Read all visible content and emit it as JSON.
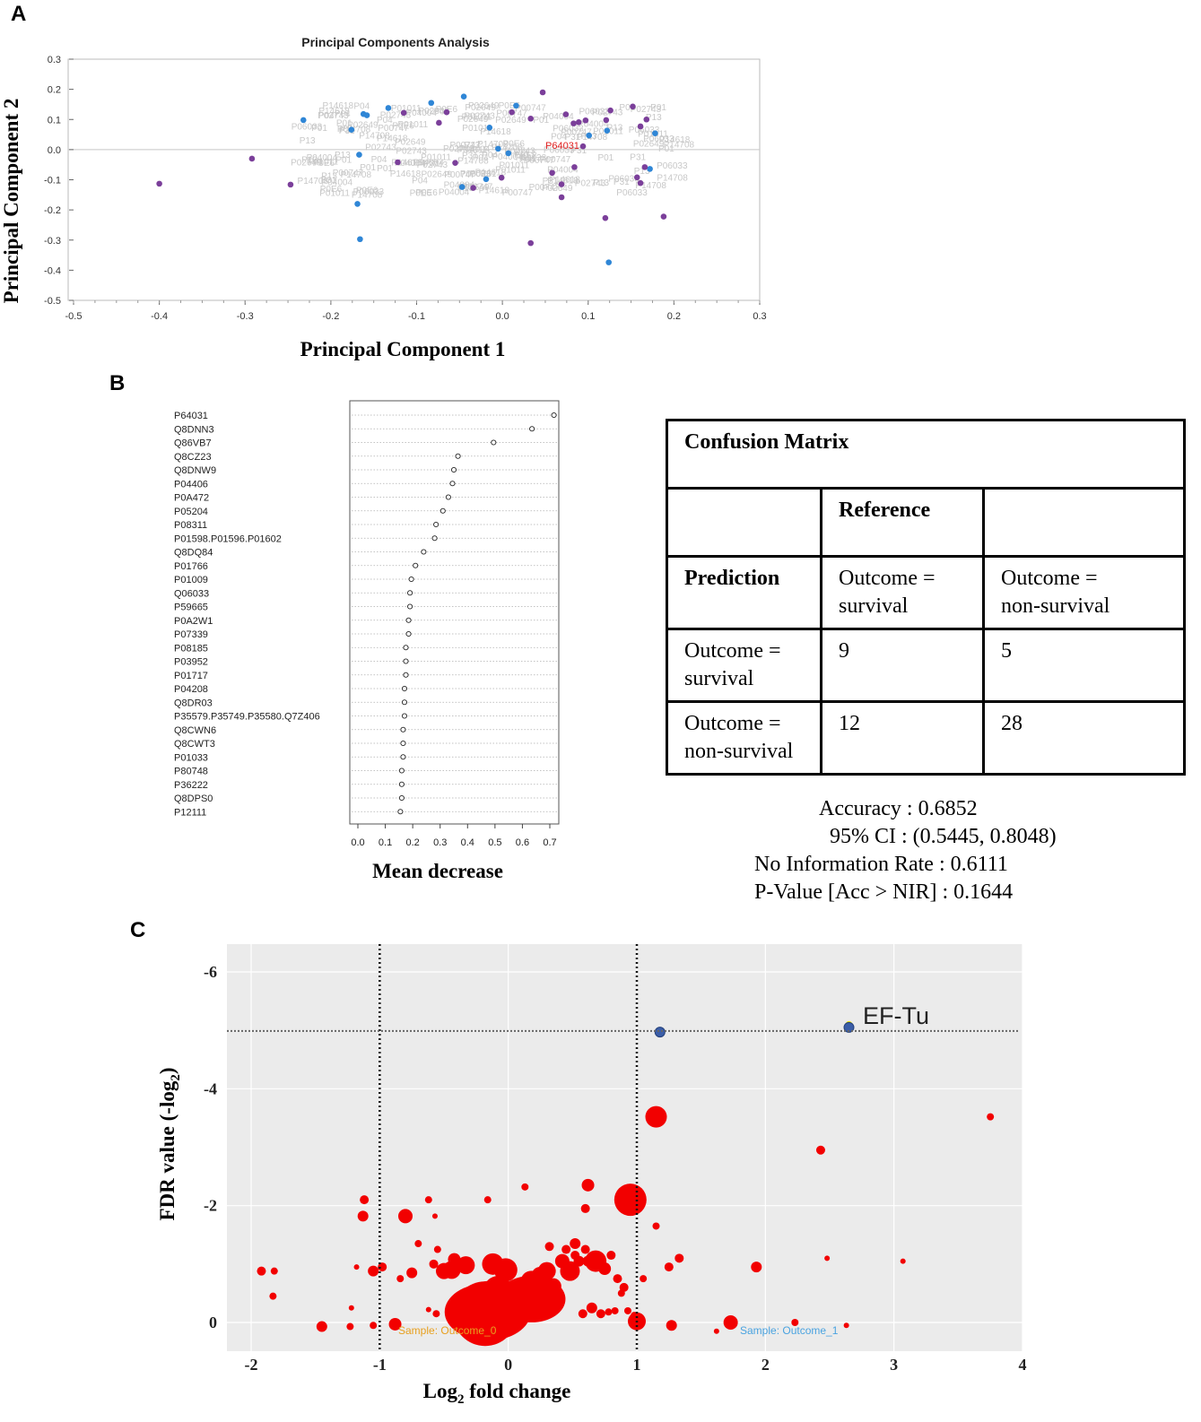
{
  "panels": {
    "a": "A",
    "b": "B",
    "c": "C"
  },
  "pca": {
    "title": "Principal Components Analysis",
    "xlabel": "Principal Component 1",
    "ylabel": "Principal Component 2",
    "highlight_label": "P64031",
    "bg_labels": [
      "P14708",
      "P00747",
      "P04004",
      "P04",
      "P06033",
      "P01011",
      "P02649",
      "P31",
      "P14618",
      "P02743",
      "P0E6",
      "P01",
      "P13"
    ],
    "colors": {
      "group1": "#2f86d6",
      "group2": "#7b3f9a",
      "highlight": "#e01e1e",
      "bg_text": "#c8c8c8"
    }
  },
  "importance": {
    "xlabel": "Mean decrease",
    "ticks": [
      "0.0",
      "0.1",
      "0.2",
      "0.3",
      "0.4",
      "0.5",
      "0.6",
      "0.7"
    ]
  },
  "confusion": {
    "title": "Confusion Matrix",
    "reference": "Reference",
    "prediction": "Prediction",
    "col1_line1": "Outcome =",
    "col1_line2": "survival",
    "col2_line1": "Outcome =",
    "col2_line2": "non-survival",
    "row1_line1": "Outcome =",
    "row1_line2": "survival",
    "row2_line1": "Outcome =",
    "row2_line2": "non-survival",
    "cells": [
      "9",
      "5",
      "12",
      "28"
    ]
  },
  "stats": {
    "accuracy": "Accuracy : 0.6852",
    "ci": "95% CI : (0.5445, 0.8048)",
    "nir": "No Information Rate : 0.6111",
    "pvalue": "P-Value [Acc > NIR] : 0.1644"
  },
  "volcano": {
    "xlabel_pre": "Log",
    "xlabel_sub": "2",
    "xlabel_post": " fold change",
    "ylabel_pre": "FDR value (-log",
    "ylabel_sub": "2",
    "ylabel_post": ")",
    "annotation": "EF-Tu",
    "sample0": "Sample: Outcome_0",
    "sample1": "Sample: Outcome_1",
    "colors": {
      "point": "#f20000",
      "highlight": "#3b5ea8",
      "sample0": "#e8a020",
      "sample1": "#4aa3e0",
      "bg": "#ebebeb"
    }
  },
  "chart_data": [
    {
      "type": "scatter",
      "title": "Principal Components Analysis",
      "xlabel": "Principal Component 1",
      "ylabel": "Principal Component 2",
      "xlim": [
        -0.5,
        0.3
      ],
      "ylim": [
        -0.5,
        0.3
      ],
      "xticks": [
        -0.5,
        -0.4,
        -0.3,
        -0.2,
        -0.1,
        0.0,
        0.1,
        0.2,
        0.3
      ],
      "yticks": [
        0.3,
        0.2,
        0.1,
        0.0,
        -0.1,
        -0.2,
        -0.3,
        -0.4,
        -0.5
      ],
      "xtick_labels": [
        "-0.5",
        "-0.4",
        "-0.3",
        "-0.2",
        "-0.1",
        "0.0",
        "0.1",
        "0.2",
        "0.3"
      ],
      "ytick_labels": [
        "0.3",
        "0.2",
        "0.1",
        "0.0",
        "-0.1",
        "-0.2",
        "-0.3",
        "-0.4",
        "-0.5"
      ],
      "series": [
        {
          "name": "group1",
          "points": [
            [
              -0.232,
              0.098
            ],
            [
              -0.176,
              0.066
            ],
            [
              -0.167,
              -0.017
            ],
            [
              -0.162,
              0.118
            ],
            [
              -0.158,
              0.114
            ],
            [
              -0.133,
              0.138
            ],
            [
              -0.083,
              0.155
            ],
            [
              -0.045,
              0.176
            ],
            [
              -0.015,
              0.073
            ],
            [
              0.016,
              0.146
            ],
            [
              -0.047,
              -0.124
            ],
            [
              -0.019,
              -0.098
            ],
            [
              -0.005,
              0.003
            ],
            [
              0.007,
              -0.012
            ],
            [
              0.101,
              0.047
            ],
            [
              0.122,
              0.063
            ],
            [
              0.178,
              0.054
            ],
            [
              0.172,
              -0.064
            ],
            [
              -0.169,
              -0.18
            ],
            [
              -0.166,
              -0.297
            ],
            [
              0.124,
              -0.374
            ]
          ]
        },
        {
          "name": "group2",
          "points": [
            [
              -0.4,
              -0.113
            ],
            [
              -0.292,
              -0.03
            ],
            [
              -0.247,
              -0.116
            ],
            [
              -0.115,
              0.122
            ],
            [
              -0.122,
              -0.042
            ],
            [
              -0.074,
              0.089
            ],
            [
              -0.065,
              0.124
            ],
            [
              -0.055,
              -0.044
            ],
            [
              -0.034,
              -0.127
            ],
            [
              0.047,
              0.19
            ],
            [
              0.011,
              0.124
            ],
            [
              0.033,
              0.103
            ],
            [
              0.074,
              0.117
            ],
            [
              0.083,
              0.087
            ],
            [
              0.089,
              0.091
            ],
            [
              0.097,
              0.097
            ],
            [
              0.121,
              0.098
            ],
            [
              0.126,
              0.13
            ],
            [
              0.152,
              0.143
            ],
            [
              0.168,
              0.1
            ],
            [
              0.161,
              0.077
            ],
            [
              0.084,
              -0.058
            ],
            [
              0.058,
              -0.077
            ],
            [
              0.069,
              -0.115
            ],
            [
              0.094,
              0.011
            ],
            [
              0.157,
              -0.092
            ],
            [
              0.161,
              -0.111
            ],
            [
              0.166,
              -0.058
            ],
            [
              0.069,
              -0.158
            ],
            [
              0.12,
              -0.227
            ],
            [
              0.188,
              -0.222
            ],
            [
              0.033,
              -0.31
            ],
            [
              -0.001,
              -0.093
            ]
          ]
        },
        {
          "name": "P64031",
          "points": [
            [
              0.052,
              0.012
            ]
          ]
        }
      ]
    },
    {
      "type": "dot",
      "xlabel": "Mean decrease",
      "xlim": [
        0.0,
        0.7
      ],
      "categories": [
        "P64031",
        "Q8DNN3",
        "Q86VB7",
        "Q8CZ23",
        "Q8DNW9",
        "P04406",
        "P0A472",
        "P05204",
        "P08311",
        "P01598.P01596.P01602",
        "Q8DQ84",
        "P01766",
        "P01009",
        "Q06033",
        "P59665",
        "P0A2W1",
        "P07339",
        "P08185",
        "P03952",
        "P01717",
        "P04208",
        "Q8DR03",
        "P35579.P35749.P35580.Q7Z406",
        "Q8CWN6",
        "Q8CWT3",
        "P01033",
        "P80748",
        "P36222",
        "Q8DPS0",
        "P12111"
      ],
      "values": [
        0.715,
        0.635,
        0.495,
        0.365,
        0.35,
        0.345,
        0.33,
        0.31,
        0.285,
        0.28,
        0.24,
        0.21,
        0.195,
        0.19,
        0.19,
        0.185,
        0.185,
        0.175,
        0.175,
        0.175,
        0.17,
        0.17,
        0.17,
        0.165,
        0.165,
        0.165,
        0.16,
        0.16,
        0.16,
        0.155
      ]
    },
    {
      "type": "table",
      "title": "Confusion Matrix",
      "columns": [
        "Outcome = survival",
        "Outcome = non-survival"
      ],
      "rows": [
        "Outcome = survival",
        "Outcome = non-survival"
      ],
      "values": [
        [
          9,
          5
        ],
        [
          12,
          28
        ]
      ],
      "accuracy": 0.6852,
      "ci95": [
        0.5445,
        0.8048
      ],
      "no_information_rate": 0.6111,
      "p_value": 0.1644
    },
    {
      "type": "scatter",
      "title": "",
      "xlabel": "Log2 fold change",
      "ylabel": "FDR value (-log2)",
      "xlim": [
        -2.2,
        4.0
      ],
      "ylim": [
        0.5,
        -6.5
      ],
      "xticks": [
        -2,
        -1,
        0,
        1,
        2,
        3,
        4
      ],
      "yticks": [
        -6,
        -4,
        -2,
        0
      ],
      "xtick_labels": [
        "-2",
        "-1",
        "0",
        "1",
        "2",
        "3",
        "4"
      ],
      "ytick_labels": [
        "-6",
        "-4",
        "-2",
        "0"
      ],
      "vlines": [
        -1,
        1
      ],
      "hline": -4.99,
      "annotation": {
        "text": "EF-Tu",
        "x": 2.65,
        "y": -5.05
      },
      "highlighted": [
        [
          1.18,
          -4.97
        ],
        [
          2.65,
          -5.05
        ]
      ],
      "points": [
        [
          -1.92,
          -0.88,
          5
        ],
        [
          -1.82,
          -0.88,
          4
        ],
        [
          -1.83,
          -0.45,
          4
        ],
        [
          -1.45,
          0.07,
          6
        ],
        [
          -1.23,
          0.07,
          4
        ],
        [
          -1.12,
          -2.1,
          5
        ],
        [
          -1.13,
          -1.82,
          6
        ],
        [
          -1.22,
          -0.25,
          3
        ],
        [
          -1.18,
          -0.95,
          3
        ],
        [
          -1.05,
          -0.88,
          6
        ],
        [
          -1.05,
          0.05,
          4
        ],
        [
          -0.88,
          0.03,
          7
        ],
        [
          -0.8,
          -1.82,
          8
        ],
        [
          -0.62,
          -2.1,
          4
        ],
        [
          -0.57,
          -1.82,
          3
        ],
        [
          -0.55,
          -1.25,
          4
        ],
        [
          -0.5,
          -0.88,
          9
        ],
        [
          -0.44,
          -0.9,
          10
        ],
        [
          -0.42,
          -1.08,
          7
        ],
        [
          -0.38,
          -0.35,
          9
        ],
        [
          -0.33,
          -0.98,
          10
        ],
        [
          -0.3,
          -0.12,
          13
        ],
        [
          -0.25,
          -0.25,
          16
        ],
        [
          -0.18,
          -0.15,
          36
        ],
        [
          -0.15,
          -0.28,
          28
        ],
        [
          -0.12,
          -1.0,
          12
        ],
        [
          -0.08,
          -0.55,
          16
        ],
        [
          -0.02,
          -0.9,
          13
        ],
        [
          0.02,
          -0.3,
          22
        ],
        [
          0.07,
          -0.4,
          15
        ],
        [
          0.12,
          -0.55,
          14
        ],
        [
          0.18,
          -0.7,
          12
        ],
        [
          0.25,
          -0.8,
          10
        ],
        [
          0.3,
          -0.88,
          10
        ],
        [
          0.35,
          -0.62,
          9
        ],
        [
          0.22,
          -0.2,
          8
        ],
        [
          0.42,
          -1.05,
          8
        ],
        [
          0.48,
          -0.88,
          11
        ],
        [
          0.52,
          -1.15,
          5
        ],
        [
          0.55,
          -1.05,
          6
        ],
        [
          0.62,
          -1.05,
          6
        ],
        [
          0.68,
          -1.05,
          12
        ],
        [
          0.75,
          -0.92,
          7
        ],
        [
          0.8,
          -1.15,
          5
        ],
        [
          0.85,
          -0.75,
          5
        ],
        [
          0.9,
          -0.6,
          5
        ],
        [
          0.58,
          -0.15,
          5
        ],
        [
          0.65,
          -0.25,
          6
        ],
        [
          0.72,
          -0.15,
          5
        ],
        [
          0.78,
          -0.18,
          4
        ],
        [
          0.83,
          -0.2,
          4
        ],
        [
          0.88,
          -0.5,
          4
        ],
        [
          0.93,
          -0.2,
          4
        ],
        [
          0.98,
          -0.12,
          4
        ],
        [
          0.6,
          -1.25,
          5
        ],
        [
          0.52,
          -1.35,
          6
        ],
        [
          0.45,
          -1.25,
          5
        ],
        [
          0.32,
          -1.3,
          5
        ],
        [
          0.62,
          -2.35,
          7
        ],
        [
          0.6,
          -1.95,
          5
        ],
        [
          0.13,
          -2.32,
          4
        ],
        [
          -0.16,
          -2.1,
          4
        ],
        [
          -0.7,
          -1.35,
          4
        ],
        [
          -0.75,
          -0.85,
          6
        ],
        [
          -0.98,
          -0.95,
          5
        ],
        [
          -0.84,
          -0.75,
          4
        ],
        [
          -0.62,
          -0.22,
          3
        ],
        [
          -0.58,
          -1.0,
          5
        ],
        [
          -0.56,
          -0.15,
          4
        ],
        [
          0.0,
          -0.5,
          4
        ],
        [
          0.95,
          -2.1,
          18
        ],
        [
          1.15,
          -3.52,
          12
        ],
        [
          1.15,
          -1.65,
          4
        ],
        [
          1.0,
          -0.02,
          10
        ],
        [
          1.05,
          -0.75,
          4
        ],
        [
          1.25,
          -0.95,
          5
        ],
        [
          1.33,
          -1.1,
          5
        ],
        [
          1.27,
          0.05,
          6
        ],
        [
          1.62,
          0.15,
          3
        ],
        [
          1.73,
          0.0,
          8
        ],
        [
          1.93,
          -0.95,
          6
        ],
        [
          2.23,
          0.0,
          4
        ],
        [
          2.43,
          -2.95,
          5
        ],
        [
          2.48,
          -1.1,
          3
        ],
        [
          2.63,
          0.05,
          3
        ],
        [
          3.07,
          -1.05,
          3
        ],
        [
          3.75,
          -3.52,
          4
        ]
      ]
    }
  ]
}
